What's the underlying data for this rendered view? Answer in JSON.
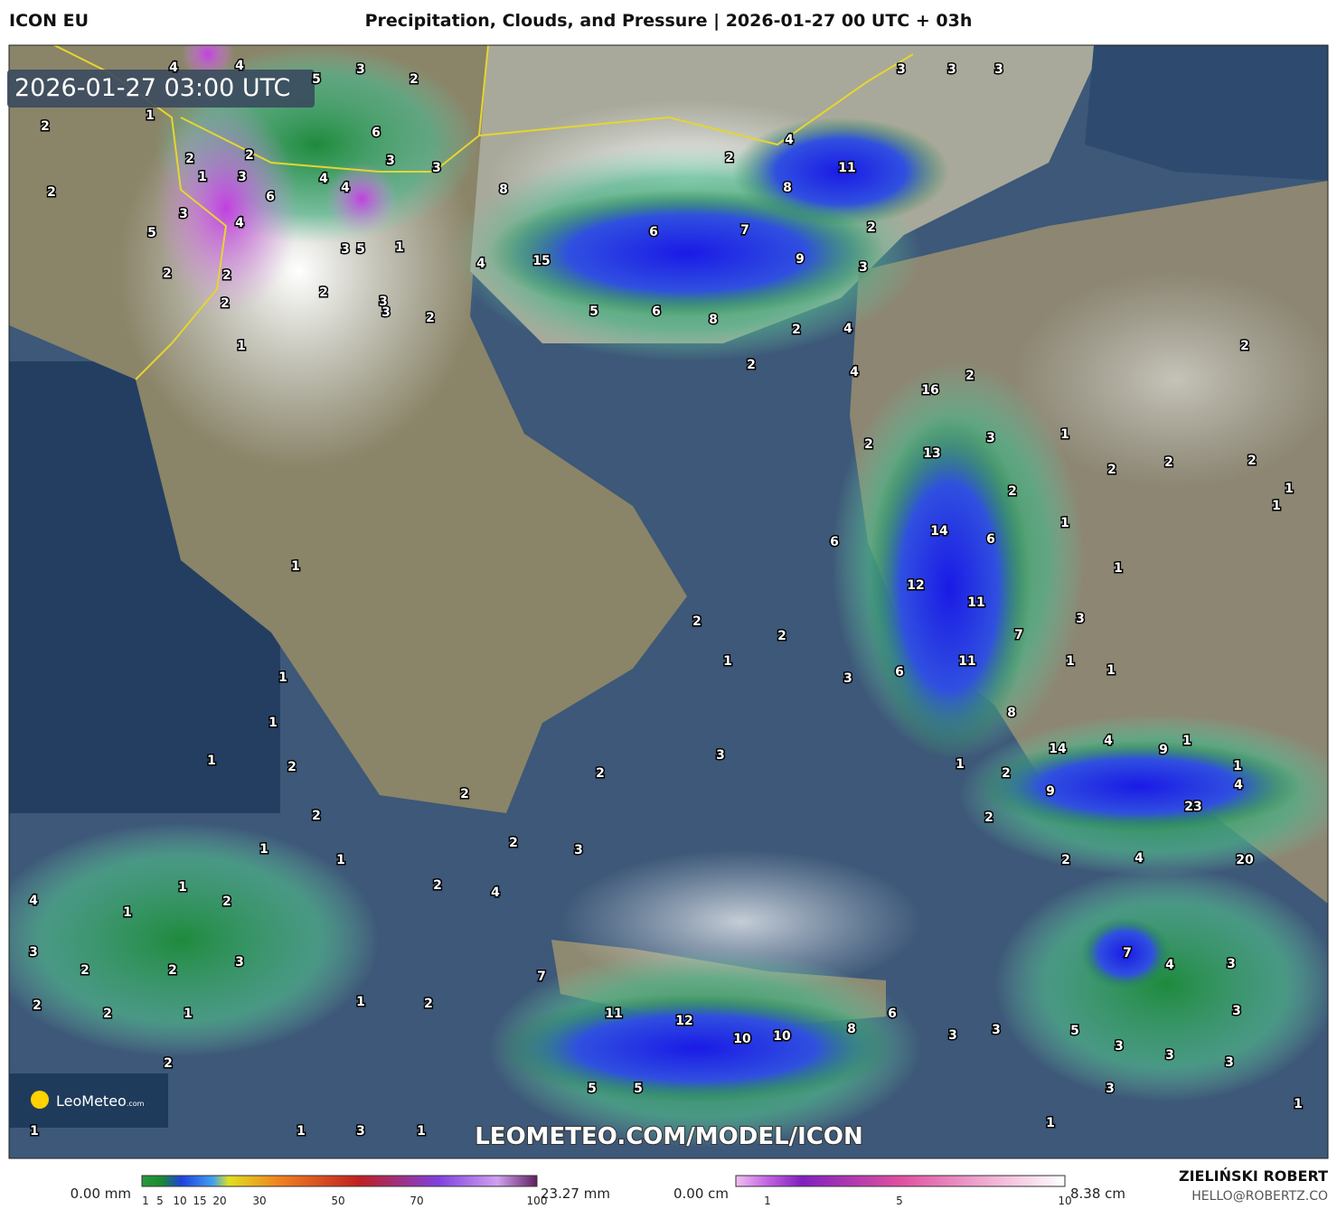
{
  "header": {
    "model": "ICON EU",
    "title": "Precipitation, Clouds, and Pressure | 2026-01-27 00 UTC + 03h"
  },
  "map": {
    "timestamp": "2026-01-27 03:00 UTC",
    "logo": {
      "name": "LeoMeteo",
      "suffix": ".com"
    },
    "watermark": "LEOMETEO.COM/MODEL/ICON",
    "labels": [
      4,
      4,
      3,
      2,
      5,
      1,
      2,
      6,
      3,
      3,
      2,
      2,
      1,
      3,
      4,
      4,
      2,
      6,
      3,
      4,
      5,
      3,
      5,
      1,
      2,
      2,
      2,
      3,
      3,
      2,
      2,
      1,
      3,
      3,
      3,
      4,
      2,
      11,
      8,
      8,
      2,
      6,
      7,
      4,
      15,
      9,
      3,
      5,
      6,
      8,
      2,
      4,
      2,
      4,
      2,
      16,
      2,
      3,
      13,
      2,
      1,
      2,
      2,
      2,
      1,
      1,
      2,
      1,
      14,
      6,
      6,
      1,
      12,
      11,
      3,
      7,
      2,
      2,
      1,
      11,
      6,
      3,
      1,
      1,
      8,
      14,
      4,
      9,
      1,
      1,
      4,
      1,
      2,
      9,
      23,
      2,
      2,
      4,
      20,
      1,
      1,
      1,
      1,
      2,
      2,
      3,
      2,
      2,
      1,
      2,
      3,
      1,
      2,
      4,
      4,
      1,
      1,
      2,
      3,
      2,
      2,
      3,
      7,
      7,
      4,
      3,
      2,
      2,
      1,
      1,
      2,
      11,
      12,
      10,
      10,
      8,
      6,
      3,
      3,
      3,
      5,
      3,
      3,
      3,
      2,
      5,
      5,
      3,
      1,
      1,
      1,
      1,
      3,
      1
    ]
  },
  "legend": {
    "rain": {
      "min": "0.00 mm",
      "max": "23.27 mm",
      "ticks": [
        1,
        5,
        10,
        15,
        20,
        30,
        50,
        70,
        100
      ]
    },
    "snow": {
      "min": "0.00 cm",
      "max": "8.38 cm",
      "ticks": [
        1,
        5,
        10
      ]
    }
  },
  "credit": {
    "author": "ZIELIŃSKI ROBERT",
    "email": "HELLO@ROBERTZ.CO"
  }
}
